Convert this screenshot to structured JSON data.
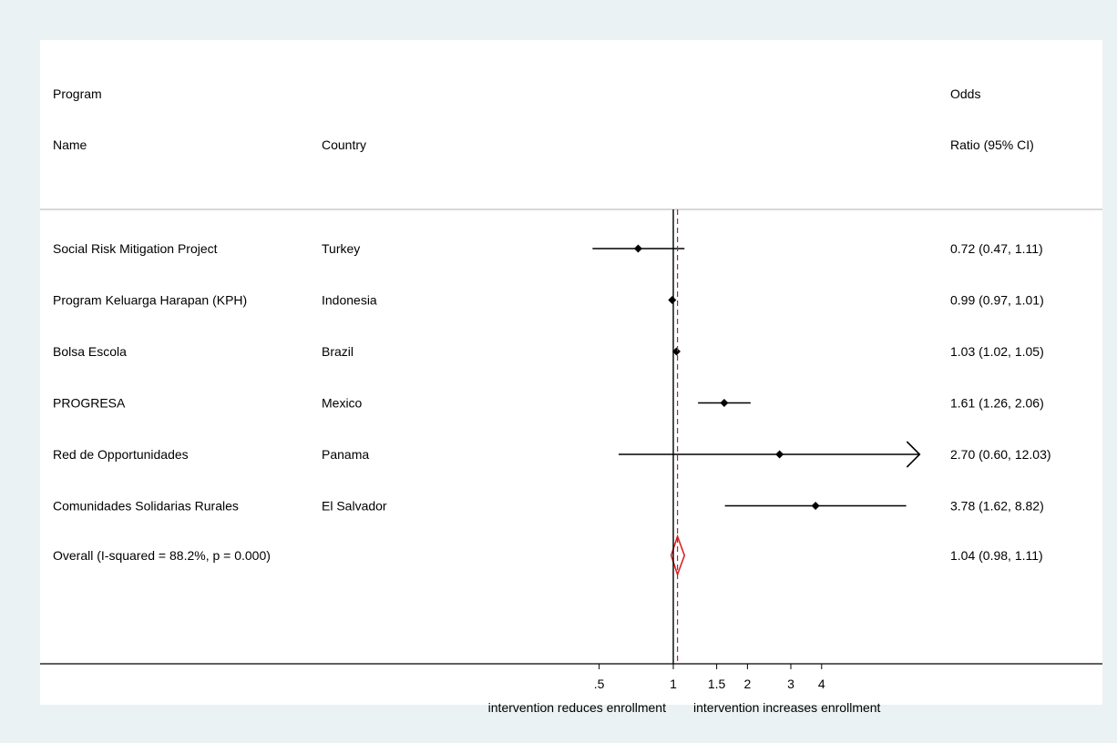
{
  "chart_data": {
    "type": "forest",
    "header": {
      "col1": [
        "Program",
        "Name"
      ],
      "col2": "Country",
      "col3": [
        "Odds",
        "Ratio (95% CI)"
      ]
    },
    "rows": [
      {
        "program": "Social Risk Mitigation Project",
        "country": "Turkey",
        "or": 0.72,
        "lower": 0.47,
        "upper": 1.11,
        "label": "0.72 (0.47, 1.11)"
      },
      {
        "program": "Program Keluarga Harapan (KPH)",
        "country": "Indonesia",
        "or": 0.99,
        "lower": 0.97,
        "upper": 1.01,
        "label": "0.99 (0.97, 1.01)"
      },
      {
        "program": "Bolsa Escola",
        "country": "Brazil",
        "or": 1.03,
        "lower": 1.02,
        "upper": 1.05,
        "label": "1.03 (1.02, 1.05)"
      },
      {
        "program": "PROGRESA",
        "country": "Mexico",
        "or": 1.61,
        "lower": 1.26,
        "upper": 2.06,
        "label": "1.61 (1.26, 2.06)"
      },
      {
        "program": "Red de Opportunidades",
        "country": "Panama",
        "or": 2.7,
        "lower": 0.6,
        "upper": 12.03,
        "label": "2.70 (0.60, 12.03)",
        "truncated_upper": true
      },
      {
        "program": "Comunidades Solidarias Rurales",
        "country": "El Salvador",
        "or": 3.78,
        "lower": 1.62,
        "upper": 8.82,
        "label": "3.78 (1.62, 8.82)"
      }
    ],
    "overall": {
      "label_text": "Overall  (I-squared = 88.2%, p = 0.000)",
      "or": 1.04,
      "lower": 0.98,
      "upper": 1.11,
      "label": "1.04 (0.98, 1.11)"
    },
    "x_axis": {
      "scale": "log",
      "ticks": [
        0.5,
        1,
        1.5,
        2,
        3,
        4
      ],
      "tick_labels": [
        ".5",
        "1",
        "1.5",
        "2",
        "3",
        "4"
      ],
      "display_max": 10,
      "left_caption": "intervention reduces enrollment",
      "right_caption": "intervention increases enrollment"
    },
    "reference_line": 1,
    "overall_line": 1.04,
    "colors": {
      "background": "#eaf2f3",
      "panel": "#ffffff",
      "overall": "#dd2222",
      "reference": "#000000",
      "markers": "#000000"
    }
  }
}
